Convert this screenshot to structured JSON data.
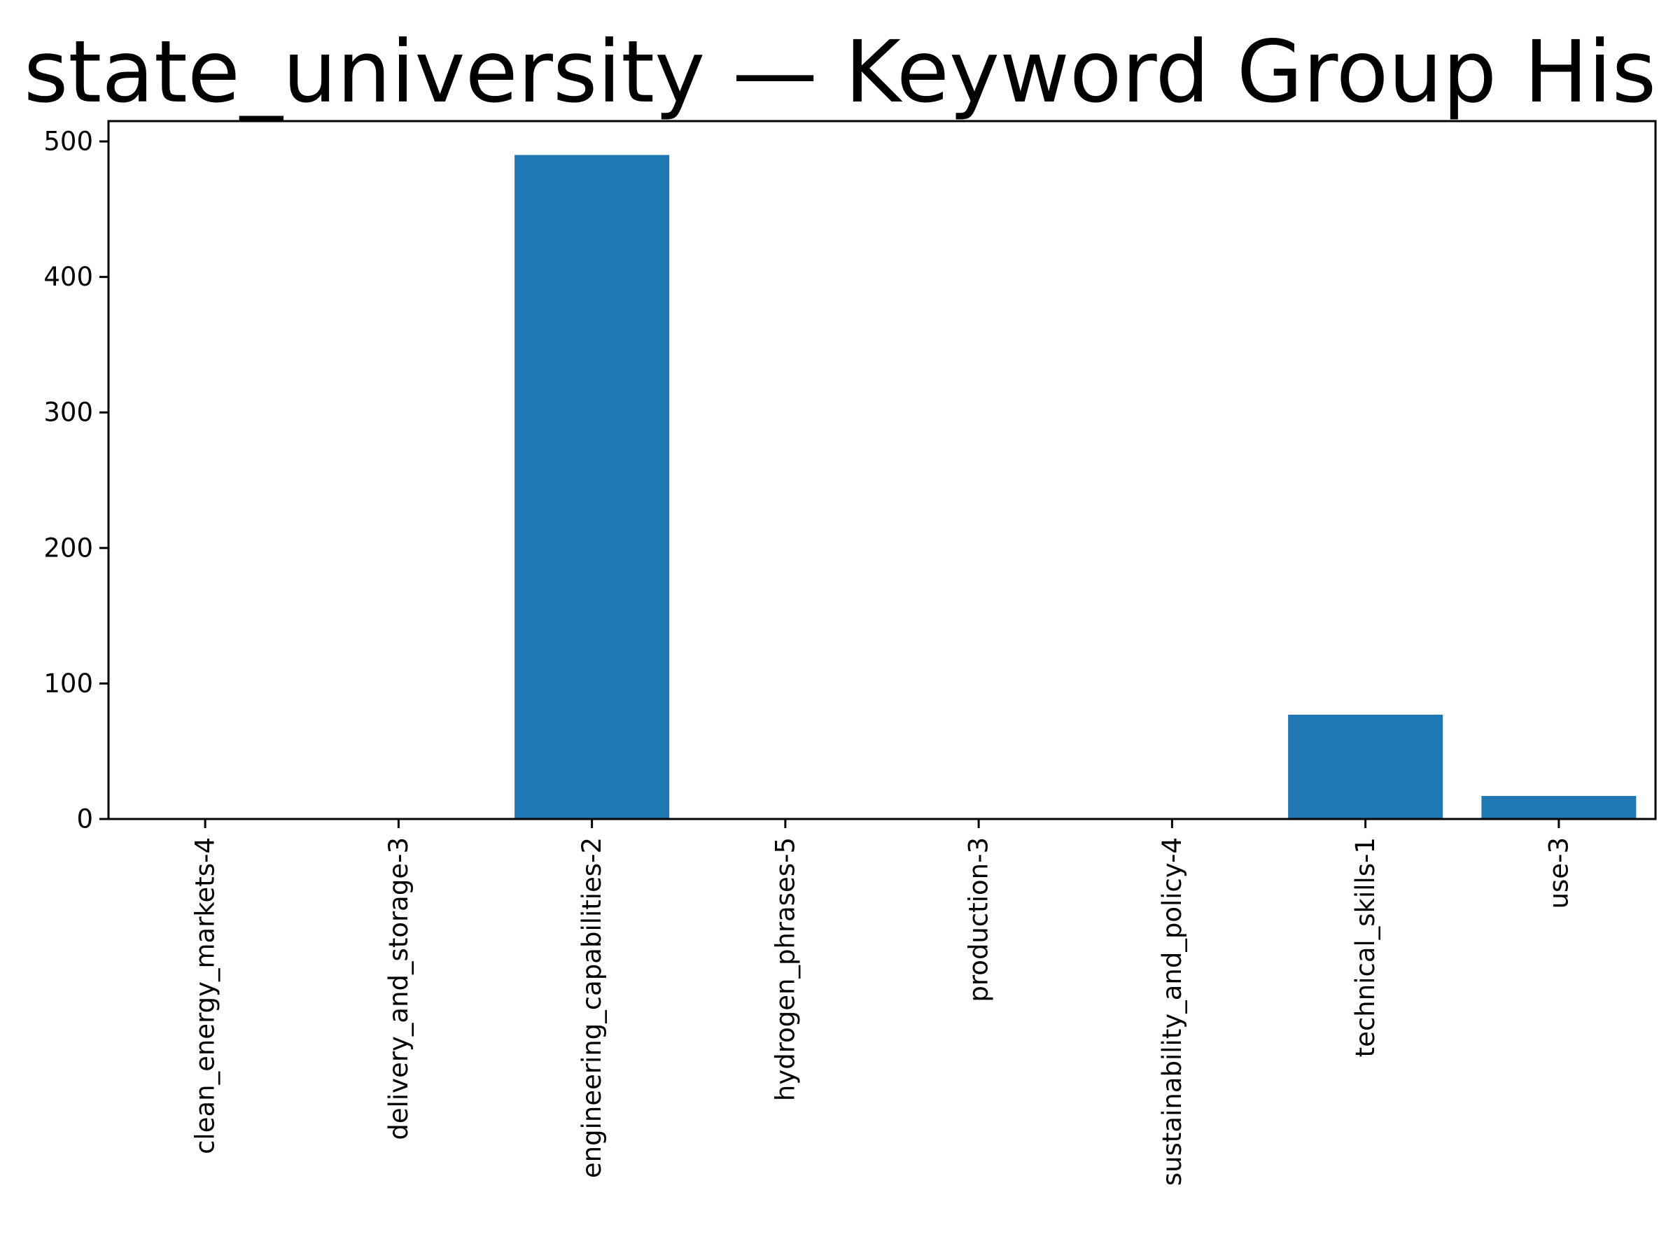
{
  "chart_data": {
    "type": "bar",
    "title": "state_university — Keyword Group His",
    "xlabel": "",
    "ylabel": "",
    "categories": [
      "clean_energy_markets-4",
      "delivery_and_storage-3",
      "engineering_capabilities-2",
      "hydrogen_phrases-5",
      "production-3",
      "sustainability_and_policy-4",
      "technical_skills-1",
      "use-3"
    ],
    "values": [
      0,
      0,
      490,
      0,
      0,
      0,
      77,
      17
    ],
    "ylim": [
      0,
      515
    ],
    "yticks": [
      0,
      100,
      200,
      300,
      400,
      500
    ],
    "grid": false,
    "bar_color": "#1f77b4"
  }
}
